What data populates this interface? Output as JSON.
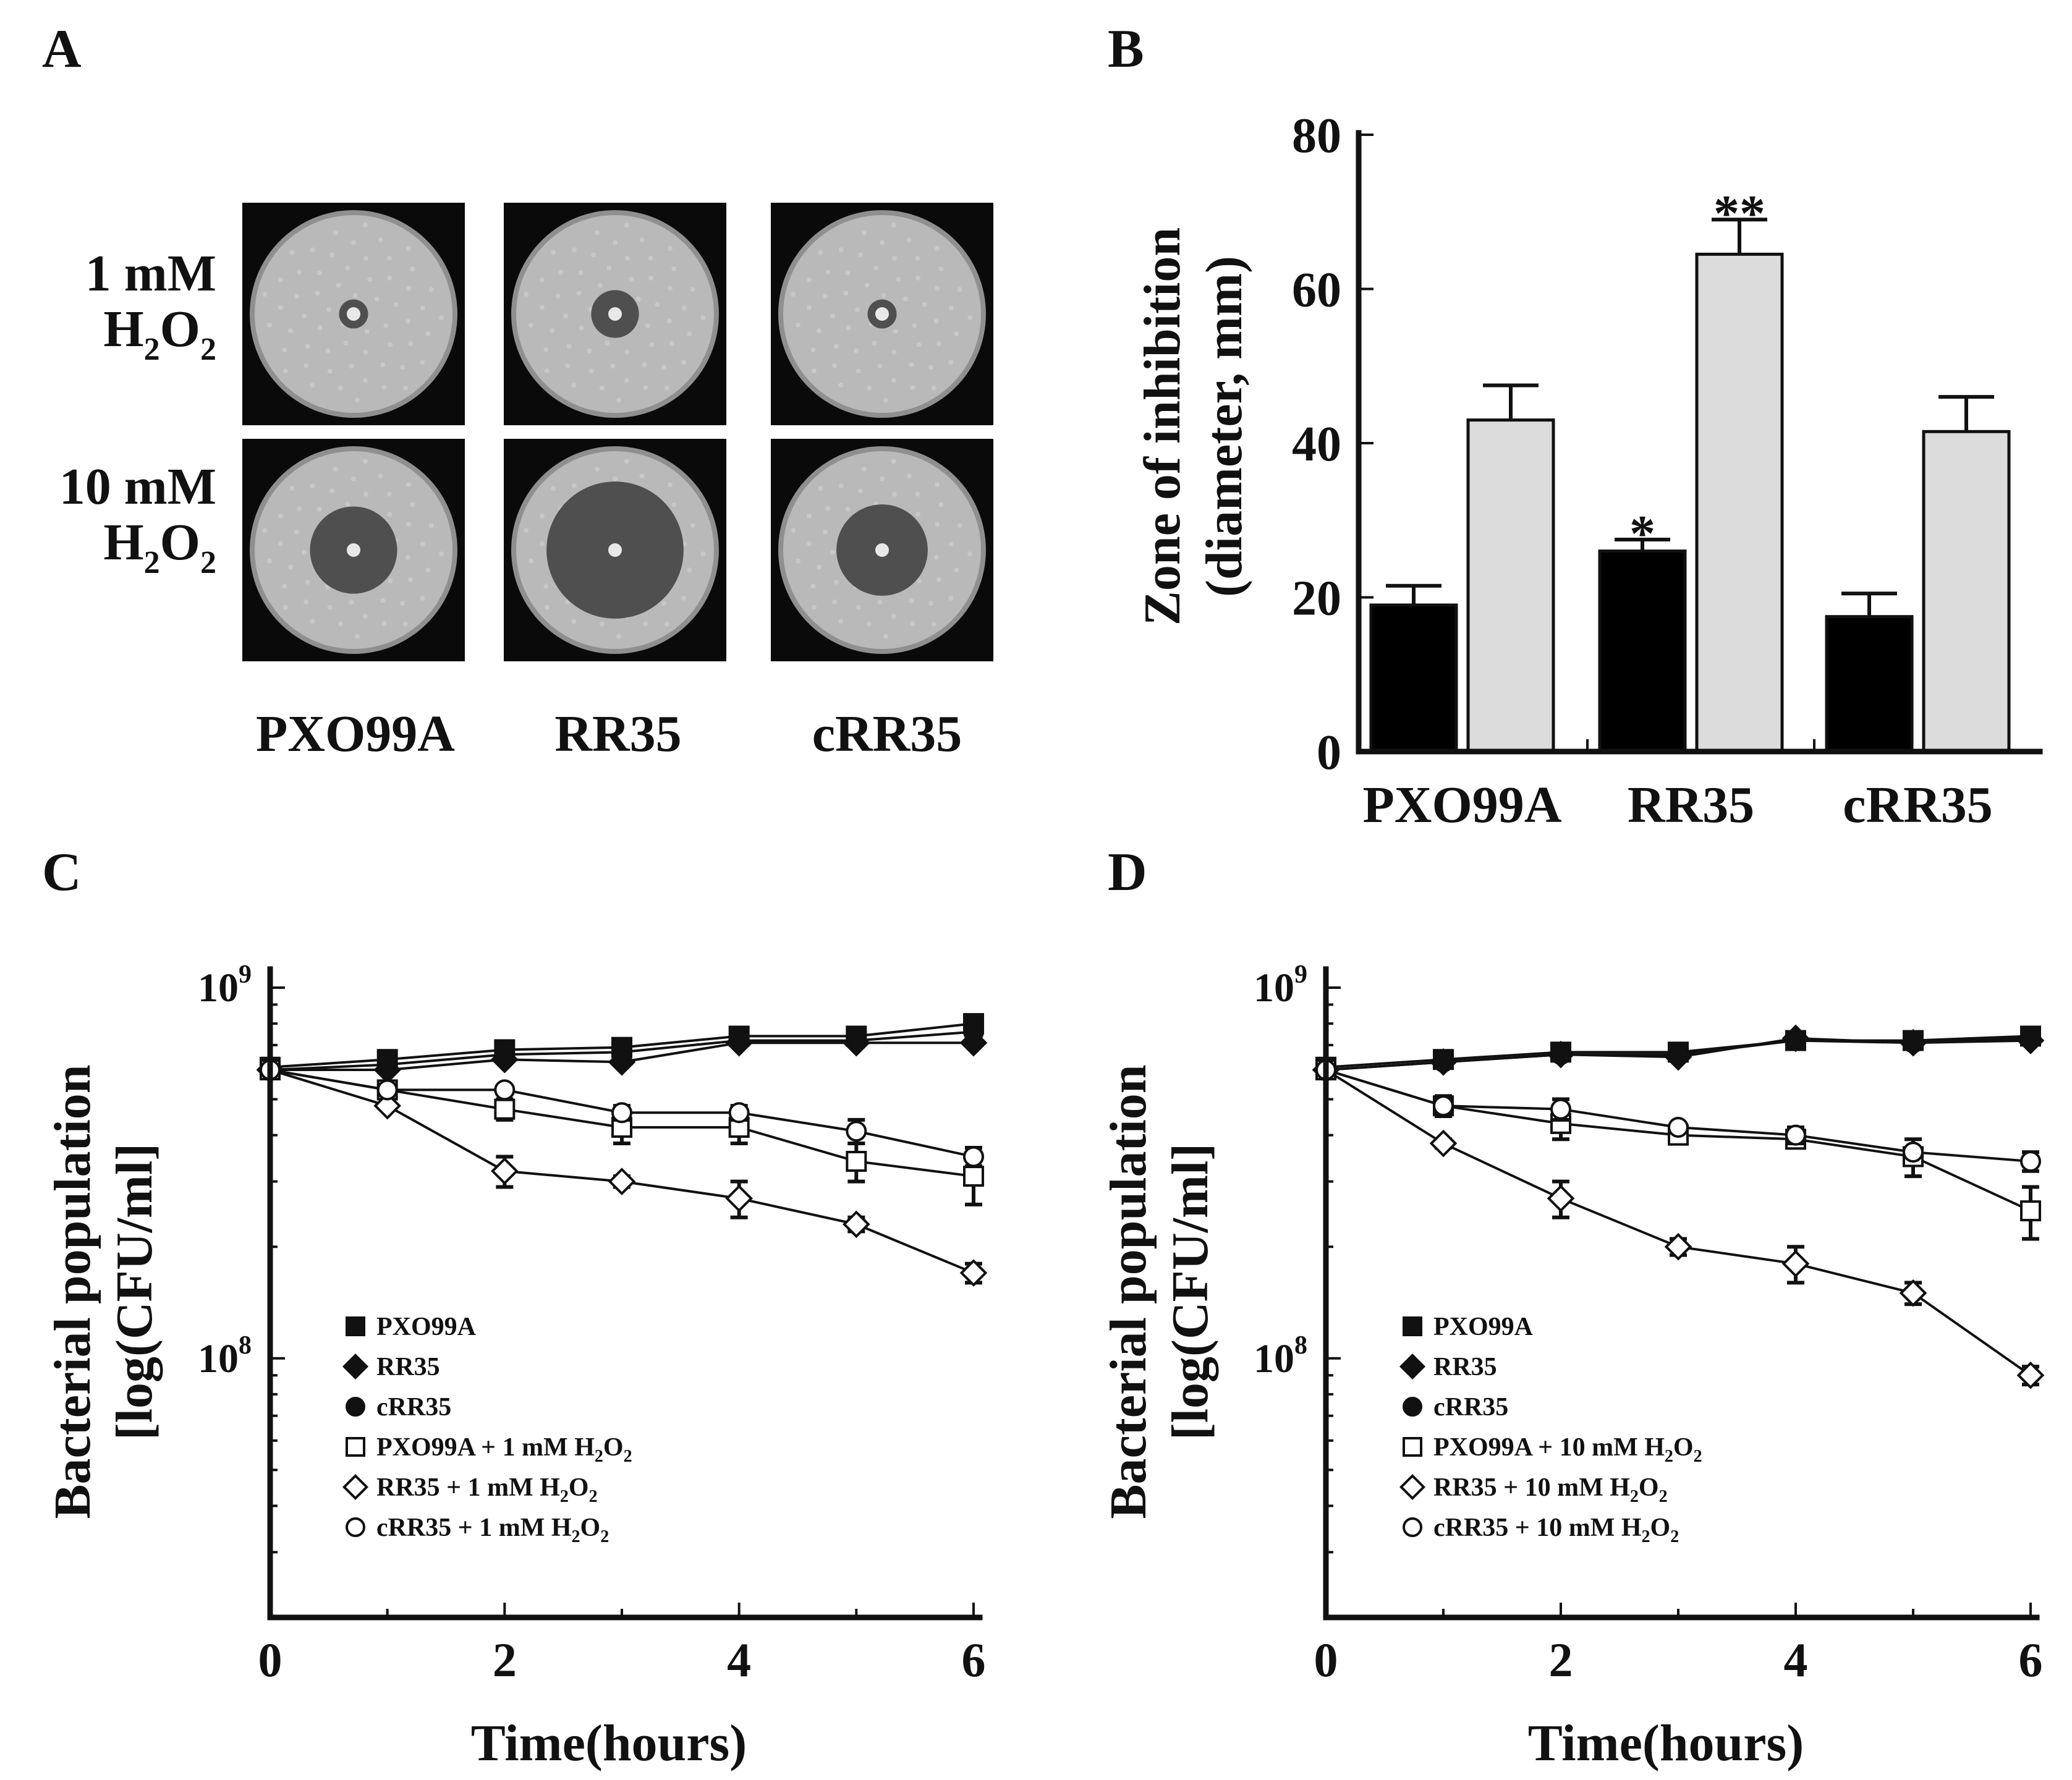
{
  "panel_labels": {
    "a": "A",
    "b": "B",
    "c": "C",
    "d": "D"
  },
  "colors": {
    "black_bar": "#000000",
    "gray_bar": "#dcdcdc",
    "plate_bg": "#0a0a0a",
    "agar": "#b9b9b9",
    "zone": "#4f4f4f"
  },
  "panel_a": {
    "row_labels": [
      {
        "line1": "1 mM",
        "chem": "H",
        "sub1": "2",
        "chem2": "O",
        "sub2": "2"
      },
      {
        "line1": "10 mM",
        "chem": "H",
        "sub1": "2",
        "chem2": "O",
        "sub2": "2"
      }
    ],
    "strains": [
      "PXO99A",
      "RR35",
      "cRR35"
    ],
    "zone_fraction_of_plate": [
      [
        0.14,
        0.23,
        0.14
      ],
      [
        0.42,
        0.66,
        0.44
      ]
    ]
  },
  "chart_data": [
    {
      "panel": "B",
      "type": "bar",
      "categories": [
        "PXO99A",
        "RR35",
        "cRR35"
      ],
      "series": [
        {
          "name": "1 mM H2O2",
          "color": "#000000",
          "values": [
            19,
            26,
            17.5
          ],
          "errors": [
            2.5,
            1.5,
            3
          ]
        },
        {
          "name": "10 mM H2O2",
          "color": "#dcdcdc",
          "values": [
            43,
            64.5,
            41.5
          ],
          "errors": [
            4.5,
            4.5,
            4.5
          ]
        }
      ],
      "significance": [
        {
          "category": "RR35",
          "series": 0,
          "label": "*"
        },
        {
          "category": "RR35",
          "series": 1,
          "label": "**"
        }
      ],
      "ylabel_line1": "Zone of inhibition",
      "ylabel_line2": "(diameter, mm)",
      "ylim": [
        0,
        80
      ],
      "yticks": [
        0,
        20,
        40,
        60,
        80
      ]
    },
    {
      "panel": "C",
      "type": "line",
      "x": [
        0,
        1,
        2,
        3,
        4,
        5,
        6
      ],
      "xlim": [
        0,
        6
      ],
      "xticks": [
        0,
        2,
        4,
        6
      ],
      "yscale": "log",
      "ylim": [
        20000000,
        1000000000
      ],
      "ytick_labels": [
        {
          "value": 1000000000,
          "base": "10",
          "exp": "9"
        },
        {
          "value": 100000000,
          "base": "10",
          "exp": "8"
        }
      ],
      "xlabel": "Time(hours)",
      "ylabel_line1": "Bacterial population",
      "ylabel_line2": "[log(CFU/ml]",
      "series": [
        {
          "name": "PXO99A",
          "marker": "square",
          "filled": true,
          "values": [
            610000000,
            640000000,
            680000000,
            690000000,
            740000000,
            740000000,
            800000000
          ],
          "errors": [
            0,
            0,
            0,
            0,
            0,
            0,
            0
          ]
        },
        {
          "name": "RR35",
          "marker": "diamond",
          "filled": true,
          "values": [
            600000000,
            600000000,
            640000000,
            630000000,
            710000000,
            710000000,
            710000000
          ],
          "errors": [
            0,
            0,
            0,
            0,
            0,
            0,
            0
          ]
        },
        {
          "name": "cRR35",
          "marker": "circle",
          "filled": true,
          "values": [
            600000000,
            620000000,
            660000000,
            670000000,
            720000000,
            720000000,
            760000000
          ],
          "errors": [
            0,
            0,
            0,
            0,
            0,
            0,
            0
          ]
        },
        {
          "name": "PXO99A + 1 mM H2O2",
          "marker": "square",
          "filled": false,
          "values": [
            600000000,
            530000000,
            470000000,
            420000000,
            420000000,
            340000000,
            310000000
          ],
          "errors": [
            0,
            0,
            30000000,
            40000000,
            40000000,
            40000000,
            50000000
          ]
        },
        {
          "name": "RR35 + 1 mM H2O2",
          "marker": "diamond",
          "filled": false,
          "values": [
            600000000,
            480000000,
            320000000,
            300000000,
            270000000,
            230000000,
            170000000
          ],
          "errors": [
            0,
            0,
            30000000,
            10000000,
            30000000,
            10000000,
            10000000
          ]
        },
        {
          "name": "cRR35 + 1 mM H2O2",
          "marker": "circle",
          "filled": false,
          "values": [
            600000000,
            530000000,
            530000000,
            460000000,
            460000000,
            410000000,
            350000000
          ],
          "errors": [
            0,
            0,
            0,
            20000000,
            20000000,
            30000000,
            20000000
          ]
        }
      ],
      "legend": [
        {
          "marker": "square",
          "filled": true,
          "text": "PXO99A"
        },
        {
          "marker": "diamond",
          "filled": true,
          "text": "RR35"
        },
        {
          "marker": "circle",
          "filled": true,
          "text": "cRR35"
        },
        {
          "marker": "square",
          "filled": false,
          "text": "PXO99A + 1 mM H",
          "sub1": "2",
          "mid": "O",
          "sub2": "2"
        },
        {
          "marker": "diamond",
          "filled": false,
          "text": "RR35 + 1 mM H",
          "sub1": "2",
          "mid": "O",
          "sub2": "2"
        },
        {
          "marker": "circle",
          "filled": false,
          "text": "cRR35 + 1 mM H",
          "sub1": "2",
          "mid": "O",
          "sub2": "2"
        }
      ]
    },
    {
      "panel": "D",
      "type": "line",
      "x": [
        0,
        1,
        2,
        3,
        4,
        5,
        6
      ],
      "xlim": [
        0,
        6
      ],
      "xticks": [
        0,
        2,
        4,
        6
      ],
      "yscale": "log",
      "ylim": [
        20000000,
        1000000000
      ],
      "ytick_labels": [
        {
          "value": 1000000000,
          "base": "10",
          "exp": "9"
        },
        {
          "value": 100000000,
          "base": "10",
          "exp": "8"
        }
      ],
      "xlabel": "Time(hours)",
      "ylabel_line1": "Bacterial population",
      "ylabel_line2": "[log(CFU/ml]",
      "series": [
        {
          "name": "PXO99A",
          "marker": "square",
          "filled": true,
          "values": [
            610000000,
            640000000,
            670000000,
            670000000,
            720000000,
            720000000,
            740000000
          ],
          "errors": [
            0,
            0,
            0,
            0,
            0,
            0,
            0
          ]
        },
        {
          "name": "RR35",
          "marker": "diamond",
          "filled": true,
          "values": [
            600000000,
            630000000,
            660000000,
            650000000,
            730000000,
            710000000,
            720000000
          ],
          "errors": [
            0,
            0,
            0,
            0,
            0,
            0,
            0
          ]
        },
        {
          "name": "cRR35",
          "marker": "circle",
          "filled": true,
          "values": [
            600000000,
            630000000,
            660000000,
            660000000,
            720000000,
            710000000,
            730000000
          ],
          "errors": [
            0,
            0,
            0,
            0,
            0,
            0,
            0
          ]
        },
        {
          "name": "PXO99A + 10 mM H2O2",
          "marker": "square",
          "filled": false,
          "values": [
            600000000,
            480000000,
            430000000,
            400000000,
            390000000,
            350000000,
            250000000
          ],
          "errors": [
            0,
            30000000,
            40000000,
            20000000,
            20000000,
            40000000,
            40000000
          ]
        },
        {
          "name": "RR35 + 10 mM H2O2",
          "marker": "diamond",
          "filled": false,
          "values": [
            600000000,
            380000000,
            270000000,
            200000000,
            180000000,
            150000000,
            90000000
          ],
          "errors": [
            0,
            10000000,
            30000000,
            10000000,
            20000000,
            10000000,
            5000000
          ]
        },
        {
          "name": "cRR35 + 10 mM H2O2",
          "marker": "circle",
          "filled": false,
          "values": [
            600000000,
            480000000,
            470000000,
            420000000,
            400000000,
            360000000,
            340000000
          ],
          "errors": [
            0,
            20000000,
            30000000,
            10000000,
            20000000,
            10000000,
            20000000
          ]
        }
      ],
      "legend": [
        {
          "marker": "square",
          "filled": true,
          "text": "PXO99A"
        },
        {
          "marker": "diamond",
          "filled": true,
          "text": "RR35"
        },
        {
          "marker": "circle",
          "filled": true,
          "text": "cRR35"
        },
        {
          "marker": "square",
          "filled": false,
          "text": "PXO99A + 10 mM H",
          "sub1": "2",
          "mid": "O",
          "sub2": "2"
        },
        {
          "marker": "diamond",
          "filled": false,
          "text": "RR35 + 10 mM H",
          "sub1": "2",
          "mid": "O",
          "sub2": "2"
        },
        {
          "marker": "circle",
          "filled": false,
          "text": "cRR35 + 10 mM H",
          "sub1": "2",
          "mid": "O",
          "sub2": "2"
        }
      ]
    }
  ]
}
